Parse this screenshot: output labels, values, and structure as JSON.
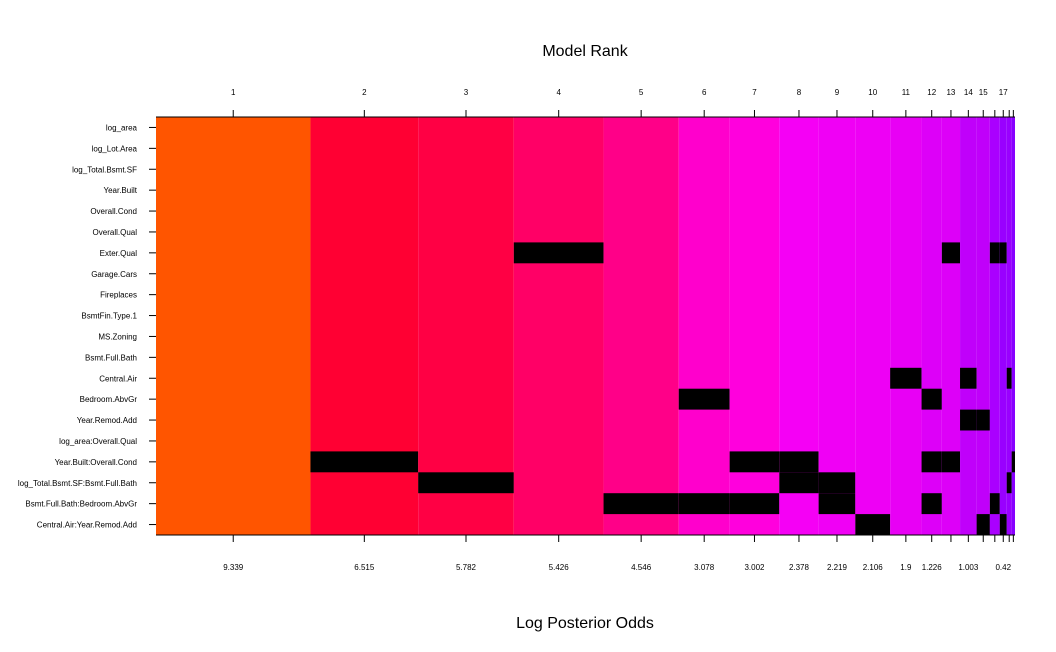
{
  "chart_data": {
    "type": "heatmap",
    "title": "Model Rank",
    "xlabel": "Log Posterior Odds",
    "top_ticks": [
      "1",
      "2",
      "3",
      "4",
      "5",
      "6",
      "7",
      "8",
      "9",
      "10",
      "11",
      "12",
      "13",
      "14",
      "15",
      "17"
    ],
    "bottom_ticks": [
      "9.339",
      "6.515",
      "5.782",
      "5.426",
      "4.546",
      "3.078",
      "3.002",
      "2.378",
      "2.219",
      "2.106",
      "1.9",
      "1.226",
      "1.003",
      "0.42"
    ],
    "variables": [
      "log_area",
      "log_Lot.Area",
      "log_Total.Bsmt.SF",
      "Year.Built",
      "Overall.Cond",
      "Overall.Qual",
      "Exter.Qual",
      "Garage.Cars",
      "Fireplaces",
      "BsmtFin.Type.1",
      "MS.Zoning",
      "Bsmt.Full.Bath",
      "Central.Air",
      "Bedroom.AbvGr",
      "Year.Remod.Add",
      "log_area:Overall.Qual",
      "Year.Built:Overall.Cond",
      "log_Total.Bsmt.SF:Bsmt.Full.Bath",
      "Bsmt.Full.Bath:Bedroom.AbvGr",
      "Central.Air:Year.Remod.Add"
    ],
    "models": [
      {
        "rank": 1,
        "log_odds": 9.339,
        "color": "#FF5500",
        "excluded": []
      },
      {
        "rank": 2,
        "log_odds": 6.515,
        "color": "#FF0033",
        "excluded": [
          "Year.Built:Overall.Cond"
        ]
      },
      {
        "rank": 3,
        "log_odds": 5.782,
        "color": "#FF0044",
        "excluded": [
          "log_Total.Bsmt.SF:Bsmt.Full.Bath"
        ]
      },
      {
        "rank": 4,
        "log_odds": 5.426,
        "color": "#FF0066",
        "excluded": [
          "Exter.Qual"
        ]
      },
      {
        "rank": 5,
        "log_odds": 4.546,
        "color": "#FF0088",
        "excluded": [
          "Bsmt.Full.Bath:Bedroom.AbvGr"
        ]
      },
      {
        "rank": 6,
        "log_odds": 3.078,
        "color": "#FF00CC",
        "excluded": [
          "Bedroom.AbvGr",
          "Bsmt.Full.Bath:Bedroom.AbvGr"
        ]
      },
      {
        "rank": 7,
        "log_odds": 3.002,
        "color": "#FF00DD",
        "excluded": [
          "Year.Built:Overall.Cond",
          "Bsmt.Full.Bath:Bedroom.AbvGr"
        ]
      },
      {
        "rank": 8,
        "log_odds": 2.378,
        "color": "#F500F5",
        "excluded": [
          "Year.Built:Overall.Cond",
          "log_Total.Bsmt.SF:Bsmt.Full.Bath"
        ]
      },
      {
        "rank": 9,
        "log_odds": 2.219,
        "color": "#F000F5",
        "excluded": [
          "log_Total.Bsmt.SF:Bsmt.Full.Bath",
          "Bsmt.Full.Bath:Bedroom.AbvGr"
        ]
      },
      {
        "rank": 10,
        "log_odds": 2.106,
        "color": "#EE00F5",
        "excluded": [
          "Central.Air:Year.Remod.Add"
        ]
      },
      {
        "rank": 11,
        "log_odds": 1.9,
        "color": "#E800F5",
        "excluded": [
          "Central.Air"
        ]
      },
      {
        "rank": 12,
        "log_odds": 1.226,
        "color": "#DD00F8",
        "excluded": [
          "Bedroom.AbvGr",
          "Year.Built:Overall.Cond",
          "Bsmt.Full.Bath:Bedroom.AbvGr"
        ]
      },
      {
        "rank": 13,
        "log_odds": 1.1,
        "color": "#DD00F8",
        "excluded": [
          "Exter.Qual",
          "Year.Built:Overall.Cond"
        ]
      },
      {
        "rank": 14,
        "log_odds": 1.003,
        "color": "#C000FA",
        "excluded": [
          "Central.Air",
          "Year.Remod.Add"
        ]
      },
      {
        "rank": 15,
        "log_odds": 0.8,
        "color": "#C000FA",
        "excluded": [
          "Year.Remod.Add",
          "Central.Air:Year.Remod.Add"
        ]
      },
      {
        "rank": 16,
        "log_odds": 0.6,
        "color": "#AA00FF",
        "excluded": [
          "Exter.Qual",
          "Bsmt.Full.Bath:Bedroom.AbvGr"
        ]
      },
      {
        "rank": 17,
        "log_odds": 0.42,
        "color": "#9900FF",
        "excluded": [
          "Exter.Qual",
          "Central.Air:Year.Remod.Add"
        ]
      },
      {
        "rank": 18,
        "log_odds": 0.3,
        "color": "#9900FF",
        "excluded": [
          "Central.Air",
          "log_Total.Bsmt.SF:Bsmt.Full.Bath"
        ]
      },
      {
        "rank": 19,
        "log_odds": 0.2,
        "color": "#8800FF",
        "excluded": [
          "Year.Built:Overall.Cond"
        ]
      }
    ],
    "excluded_color": "#000000"
  }
}
